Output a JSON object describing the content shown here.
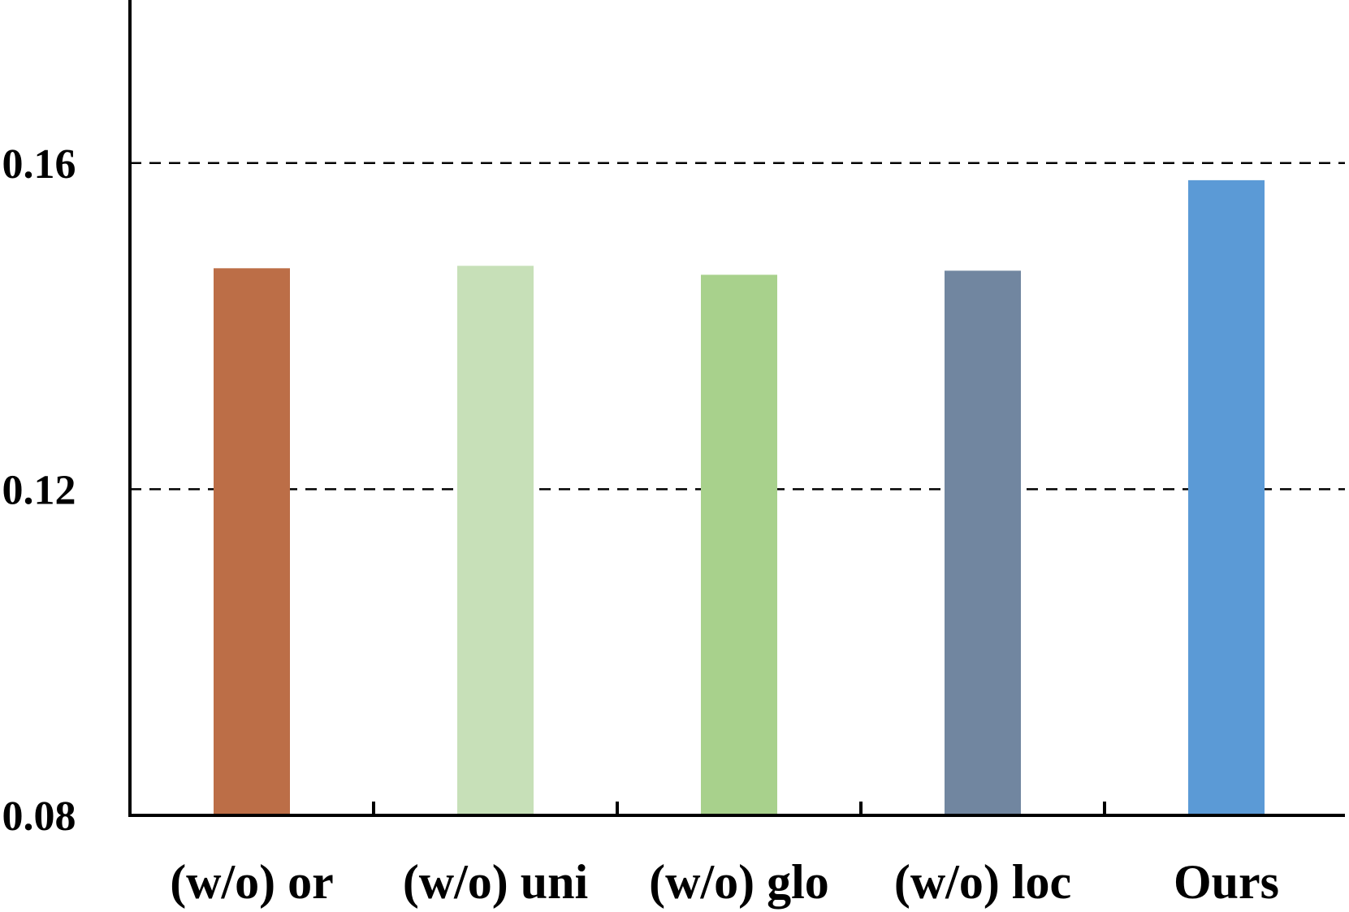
{
  "chart_data": {
    "type": "bar",
    "categories": [
      "(w/o) or",
      "(w/o) uni",
      "(w/o) glo",
      "(w/o) loc",
      "Ours"
    ],
    "values": [
      0.1471,
      0.1474,
      0.1463,
      0.1468,
      0.1579
    ],
    "colors": [
      "#BC6E47",
      "#C7E0B8",
      "#A8D18C",
      "#7186A0",
      "#5B9AD6"
    ],
    "title": "",
    "xlabel": "",
    "ylabel": "",
    "ylim": [
      0.08,
      0.18
    ],
    "yticks": [
      0.08,
      0.12,
      0.16
    ],
    "ytick_labels": [
      "0.08",
      "0.12",
      "0.16"
    ],
    "gridlines": [
      0.12,
      0.16
    ],
    "grid": "dashed horizontal at labeled ticks",
    "legend": "none"
  }
}
